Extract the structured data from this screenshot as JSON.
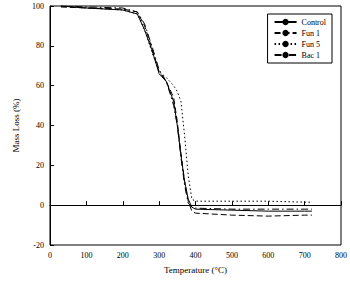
{
  "chart_data": {
    "type": "line",
    "x_label": "Temperature (°C)",
    "y_label": "Mass Loss (%)",
    "x": [
      30,
      100,
      200,
      240,
      260,
      280,
      300,
      320,
      340,
      350,
      360,
      370,
      380,
      390,
      400,
      500,
      600,
      700,
      720
    ],
    "series": [
      {
        "name": "Control",
        "color": "#000000",
        "line_style": "solid",
        "values": [
          100,
          99,
          98,
          96,
          88,
          78,
          66,
          62,
          52,
          40,
          25,
          12,
          3,
          -1,
          -2,
          -2.5,
          -3,
          -3,
          -3
        ]
      },
      {
        "name": "Fun 1",
        "color": "#000000",
        "line_style": "dashed",
        "values": [
          99.5,
          99,
          98.5,
          97,
          90,
          79,
          67,
          62,
          54,
          42,
          26,
          12,
          2,
          -3,
          -4,
          -5,
          -5.5,
          -5,
          -5
        ]
      },
      {
        "name": "Fun 5",
        "color": "#000000",
        "line_style": "dotted",
        "values": [
          100,
          99,
          98,
          96,
          88,
          77,
          67,
          64,
          60,
          57,
          52,
          35,
          15,
          3,
          2,
          2,
          2,
          1.5,
          1.5
        ]
      },
      {
        "name": "Bac 1",
        "color": "#000000",
        "line_style": "dashdot",
        "values": [
          100,
          99.5,
          99,
          97,
          91,
          80,
          68,
          62,
          50,
          40,
          24,
          10,
          1,
          -1,
          -1.5,
          -2,
          -2,
          -2,
          -2
        ]
      }
    ],
    "xlim": [
      0,
      800
    ],
    "xticks": [
      0,
      100,
      200,
      300,
      400,
      500,
      600,
      700,
      800
    ],
    "ylim": [
      -20,
      100
    ],
    "yticks": [
      -20,
      0,
      20,
      40,
      60,
      80,
      100
    ],
    "grid": false,
    "legend": "upper-right"
  }
}
